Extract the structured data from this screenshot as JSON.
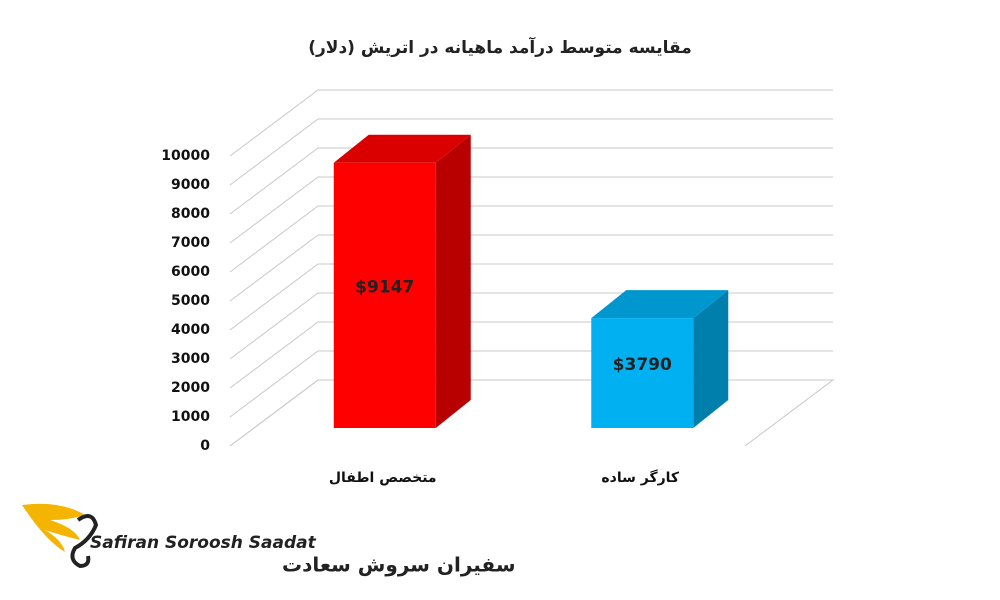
{
  "chart_data": {
    "type": "bar3d",
    "title": "مقایسه متوسط درآمد ماهیانه در اتریش (دلار)",
    "categories": [
      "متخصص اطفال",
      "کارگر ساده"
    ],
    "values": [
      9147,
      3790
    ],
    "value_labels": [
      "$9147",
      "$3790"
    ],
    "colors": [
      "#ff0000",
      "#00b0f0"
    ],
    "ylim": [
      0,
      10000
    ],
    "yticks": [
      0,
      1000,
      2000,
      3000,
      4000,
      5000,
      6000,
      7000,
      8000,
      9000,
      10000
    ],
    "grid": true
  },
  "logo": {
    "name_en": "Safiran Soroosh Saadat",
    "name_fa": "سفیران سروش سعادت"
  }
}
